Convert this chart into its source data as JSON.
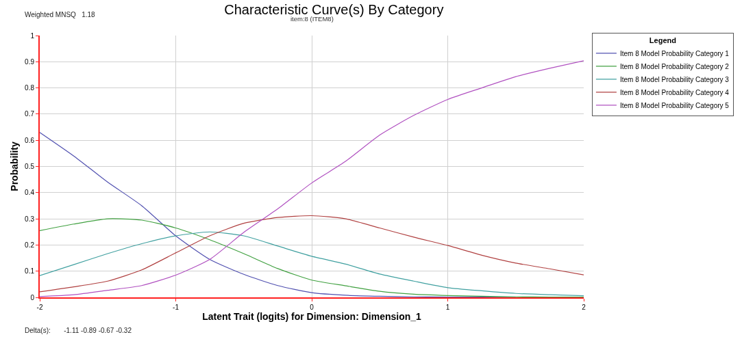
{
  "chart_data": {
    "type": "line",
    "title": "Characteristic Curve(s) By Category",
    "subtitle": "item:8 (ITEM8)",
    "xlabel": "Latent Trait (logits) for Dimension: Dimension_1",
    "ylabel": "Probability",
    "legend_title": "Legend",
    "legend": "right",
    "annotations": [
      "Weighted MNSQ   1.18",
      "Delta(s):       -1.11 -0.89 -0.67 -0.32"
    ],
    "x": [
      -2,
      -1.75,
      -1.5,
      -1.25,
      -1,
      -0.75,
      -0.5,
      -0.25,
      0,
      0.25,
      0.5,
      0.75,
      1,
      1.25,
      1.5,
      1.75,
      2
    ],
    "series": [
      {
        "name": "Item 8 Model Probability Category 1",
        "color": "#5050b0",
        "values": [
          0.63,
          0.54,
          0.44,
          0.35,
          0.235,
          0.145,
          0.088,
          0.045,
          0.018,
          0.008,
          0.004,
          0.002,
          0.001,
          0.001,
          0,
          null,
          null
        ]
      },
      {
        "name": "Item 8 Model Probability Category 2",
        "color": "#40a040",
        "values": [
          0.255,
          0.28,
          0.3,
          0.295,
          0.265,
          0.22,
          0.167,
          0.11,
          0.066,
          0.044,
          0.023,
          0.012,
          0.007,
          0.004,
          0.002,
          0.001,
          0.001
        ]
      },
      {
        "name": "Item 8 Model Probability Category 3",
        "color": "#40a0a0",
        "values": [
          0.083,
          0.125,
          0.167,
          0.205,
          0.235,
          0.25,
          0.235,
          0.196,
          0.157,
          0.127,
          0.089,
          0.062,
          0.037,
          0.025,
          0.015,
          0.01,
          0.006
        ]
      },
      {
        "name": "Item 8 Model Probability Category 4",
        "color": "#b04040",
        "values": [
          0.021,
          0.04,
          0.062,
          0.105,
          0.17,
          0.235,
          0.283,
          0.305,
          0.312,
          0.3,
          0.265,
          0.23,
          0.198,
          0.161,
          0.131,
          0.109,
          0.086
        ]
      },
      {
        "name": "Item 8 Model Probability Category 5",
        "color": "#b050c0",
        "values": [
          0.003,
          0.01,
          0.027,
          0.045,
          0.085,
          0.145,
          0.248,
          0.338,
          0.437,
          0.52,
          0.62,
          0.695,
          0.756,
          0.8,
          0.843,
          0.875,
          0.904
        ]
      }
    ],
    "xlim": [
      -2,
      2
    ],
    "xticks": [
      -2,
      -1,
      0,
      1,
      2
    ],
    "ylim": [
      0,
      1
    ],
    "yticks": [
      0,
      0.1,
      0.2,
      0.3,
      0.4,
      0.5,
      0.6,
      0.7,
      0.8,
      0.9,
      1
    ],
    "grid": true
  }
}
